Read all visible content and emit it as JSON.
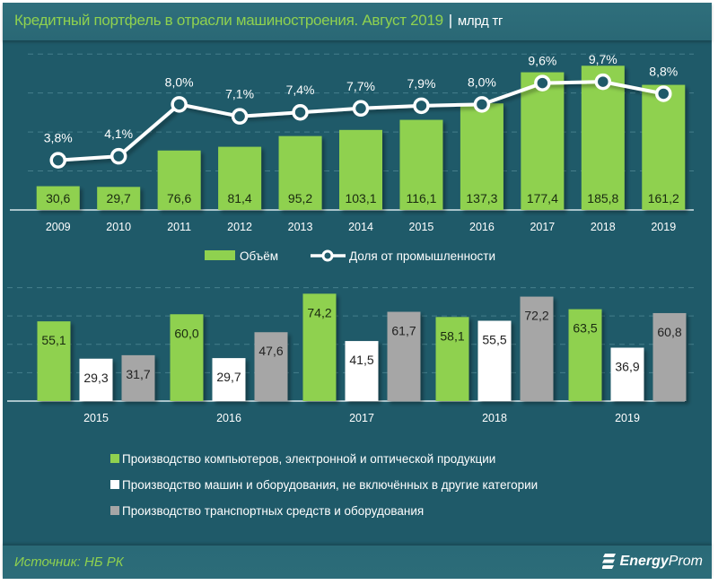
{
  "header": {
    "title": "Кредитный портфель в отрасли машиностроения. Август 2019",
    "separator": "|",
    "unit": "млрд тг"
  },
  "footer": {
    "source": "Источник: НБ РК",
    "logo_bold": "Energy",
    "logo_light": "Prom",
    "logo_icon": "energyprom-logo-icon"
  },
  "colors": {
    "background": "#1f5a69",
    "header_bg": "#2f6f7c",
    "accent_green": "#8fd14f",
    "white": "#ffffff",
    "gray": "#a6a6a6"
  },
  "chart_data": [
    {
      "type": "bar",
      "combo": "bar+line",
      "title": "Кредитный портфель в отрасли машиностроения. Август 2019",
      "categories": [
        "2009",
        "2010",
        "2011",
        "2012",
        "2013",
        "2014",
        "2015",
        "2016",
        "2017",
        "2018",
        "2019"
      ],
      "series": [
        {
          "name": "Объём",
          "type": "bar",
          "color": "#8fd14f",
          "values": [
            30.6,
            29.7,
            76.6,
            81.4,
            95.2,
            103.1,
            116.1,
            137.3,
            177.4,
            185.8,
            161.2
          ],
          "labels": [
            "30,6",
            "29,7",
            "76,6",
            "81,4",
            "95,2",
            "103,1",
            "116,1",
            "137,3",
            "177,4",
            "185,8",
            "161,2"
          ],
          "axis": "primary",
          "ylim": [
            0,
            200
          ]
        },
        {
          "name": "Доля от промышленности",
          "type": "line",
          "color": "#ffffff",
          "values": [
            3.8,
            4.1,
            8.0,
            7.1,
            7.4,
            7.7,
            7.9,
            8.0,
            9.6,
            9.7,
            8.8
          ],
          "labels": [
            "3,8%",
            "4,1%",
            "8,0%",
            "7,1%",
            "7,4%",
            "7,7%",
            "7,9%",
            "8,0%",
            "9,6%",
            "9,7%",
            "8,8%"
          ],
          "axis": "secondary",
          "ylim": [
            0,
            12
          ]
        }
      ],
      "xlabel": "",
      "ylabel": "",
      "grid": true,
      "legend": "bottom"
    },
    {
      "type": "bar",
      "categories": [
        "2015",
        "2016",
        "2017",
        "2018",
        "2019"
      ],
      "series": [
        {
          "name": "Производство компьютеров, электронной и оптической продукции",
          "color": "#8fd14f",
          "values": [
            55.1,
            60.0,
            74.2,
            58.1,
            63.5
          ],
          "labels": [
            "55,1",
            "60,0",
            "74,2",
            "58,1",
            "63,5"
          ]
        },
        {
          "name": "Производство машин и оборудования, не включённых в другие категории",
          "color": "#ffffff",
          "values": [
            29.3,
            29.7,
            41.5,
            55.5,
            36.9
          ],
          "labels": [
            "29,3",
            "29,7",
            "41,5",
            "55,5",
            "36,9"
          ]
        },
        {
          "name": "Производство транспортных средств и оборудования",
          "color": "#a6a6a6",
          "values": [
            31.7,
            47.6,
            61.7,
            72.2,
            60.8
          ],
          "labels": [
            "31,7",
            "47,6",
            "61,7",
            "72,2",
            "60,8"
          ]
        }
      ],
      "xlabel": "",
      "ylabel": "",
      "ylim": [
        0,
        80
      ],
      "grid": true,
      "legend": "bottom"
    }
  ]
}
